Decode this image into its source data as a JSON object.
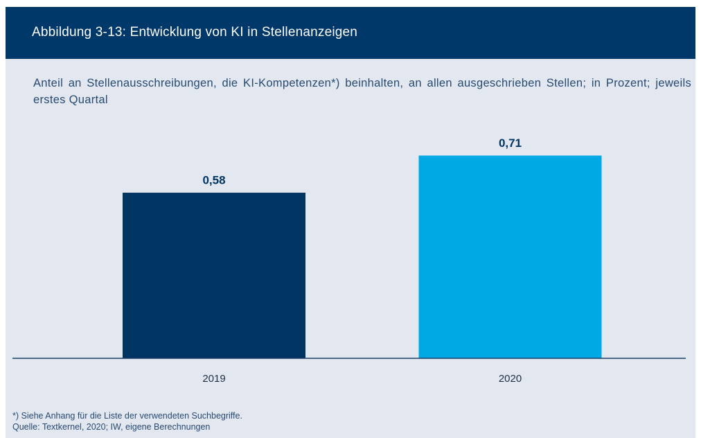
{
  "chart_data": {
    "type": "bar",
    "title": "Abbildung 3-13: Entwicklung von KI in Stellenanzeigen",
    "subtitle": "Anteil an Stellenausschreibungen, die KI-Kompetenzen*) beinhalten, an allen ausgeschrieben Stellen; in Prozent; jeweils erstes Quartal",
    "categories": [
      "2019",
      "2020"
    ],
    "values": [
      0.58,
      0.71
    ],
    "value_labels": [
      "0,58",
      "0,71"
    ],
    "colors": [
      "#003463",
      "#00a8e4"
    ],
    "ylim": [
      0,
      1
    ],
    "notes": [
      "*) Siehe Anhang für die Liste der verwendeten Suchbegriffe.",
      "Quelle: Textkernel, 2020; IW, eigene Berechnungen"
    ]
  }
}
